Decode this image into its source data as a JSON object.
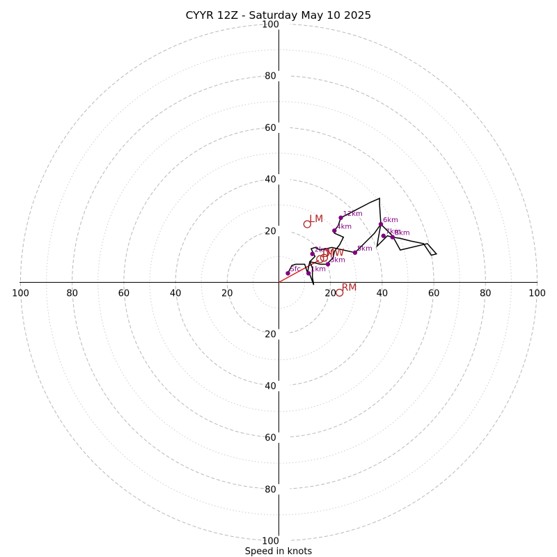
{
  "chart_data": {
    "type": "hodograph",
    "title": "CYYR 12Z - Saturday May 10 2025",
    "xlabel": "Speed in knots",
    "range": 100,
    "ring_major": [
      20,
      40,
      60,
      80,
      100
    ],
    "ring_minor": [
      10,
      30,
      50,
      70,
      90
    ],
    "axis_ticks": [
      {
        "v": 20,
        "label": "20"
      },
      {
        "v": 40,
        "label": "40"
      },
      {
        "v": 60,
        "label": "60"
      },
      {
        "v": 80,
        "label": "80"
      },
      {
        "v": 100,
        "label": "100"
      }
    ],
    "colors": {
      "trace": "#000000",
      "points": "#800080",
      "motion": "#b22222",
      "shear_vector": "#e02020",
      "ring_major": "#b8b8b8",
      "ring_minor": "#cccccc"
    },
    "trace": [
      [
        3.5,
        3.5
      ],
      [
        5,
        6.5
      ],
      [
        6.5,
        7
      ],
      [
        10,
        7
      ],
      [
        11,
        4
      ],
      [
        12,
        3
      ],
      [
        13.5,
        -1
      ],
      [
        13,
        2
      ],
      [
        13,
        5.5
      ],
      [
        12,
        8
      ],
      [
        14,
        10
      ],
      [
        13.5,
        11
      ],
      [
        12.5,
        13
      ],
      [
        14,
        13.5
      ],
      [
        16,
        12.5
      ],
      [
        20.5,
        13.5
      ],
      [
        29.5,
        11.5
      ],
      [
        33,
        15
      ],
      [
        37,
        19
      ],
      [
        39.5,
        22.5
      ],
      [
        38.5,
        17
      ],
      [
        38,
        14
      ],
      [
        42,
        18
      ],
      [
        44,
        17.5
      ],
      [
        47,
        17
      ],
      [
        51,
        16
      ],
      [
        56,
        15
      ],
      [
        59,
        10.5
      ],
      [
        61,
        11
      ],
      [
        57.5,
        15
      ],
      [
        47,
        12.5
      ],
      [
        44,
        18
      ],
      [
        39.5,
        22.5
      ],
      [
        39,
        30
      ],
      [
        39,
        32.5
      ],
      [
        35.5,
        31
      ],
      [
        24,
        25
      ],
      [
        23,
        22
      ],
      [
        21.5,
        20
      ],
      [
        21.5,
        19
      ],
      [
        25,
        17.5
      ],
      [
        23.5,
        14.5
      ],
      [
        21.5,
        12
      ],
      [
        21,
        9.5
      ],
      [
        18.5,
        7
      ],
      [
        16,
        7
      ],
      [
        12,
        8
      ],
      [
        11.5,
        6
      ],
      [
        11,
        3
      ]
    ],
    "points": [
      {
        "label": "Sfc",
        "x": 3.5,
        "y": 3.5
      },
      {
        "label": "1km",
        "x": 11.5,
        "y": 3.5
      },
      {
        "label": "2km",
        "x": 13,
        "y": 11
      },
      {
        "label": "3km",
        "x": 19,
        "y": 7
      },
      {
        "label": "4km",
        "x": 21.5,
        "y": 20
      },
      {
        "label": "5km",
        "x": 29.5,
        "y": 11.5
      },
      {
        "label": "6km",
        "x": 39.5,
        "y": 22.5
      },
      {
        "label": "7km",
        "x": 40.5,
        "y": 18
      },
      {
        "label": "8km",
        "x": 44,
        "y": 17.5
      },
      {
        "label": "12km",
        "x": 24,
        "y": 25
      }
    ],
    "motions": [
      {
        "label": "LM",
        "x": 11,
        "y": 22.5
      },
      {
        "label": "RM",
        "x": 23.5,
        "y": -4
      },
      {
        "label": "MW",
        "x": 17.5,
        "y": 9.5
      },
      {
        "label": "DI",
        "x": 16,
        "y": 9
      }
    ],
    "shear_vector": {
      "x": 15.5,
      "y": 8.5
    }
  }
}
